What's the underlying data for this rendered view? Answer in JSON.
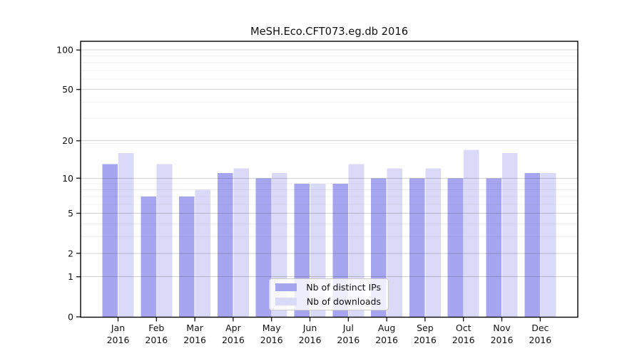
{
  "chart_data": {
    "type": "bar",
    "title": "MeSH.Eco.CFT073.eg.db 2016",
    "categories": [
      "Jan",
      "Feb",
      "Mar",
      "Apr",
      "May",
      "Jun",
      "Jul",
      "Aug",
      "Sep",
      "Oct",
      "Nov",
      "Dec"
    ],
    "x_year_label": "2016",
    "series": [
      {
        "name": "Nb of distinct IPs",
        "color": "#a6a6f0",
        "values": [
          13,
          7,
          7,
          11,
          10,
          9,
          9,
          10,
          10,
          10,
          10,
          11
        ]
      },
      {
        "name": "Nb of downloads",
        "color": "#dadaf8",
        "values": [
          16,
          13,
          8,
          12,
          11,
          9,
          13,
          12,
          12,
          17,
          16,
          11
        ]
      }
    ],
    "y_scale": "log10(1+v), linear-looking 0 baseline",
    "y_major_ticks": [
      0,
      1,
      2,
      5,
      10,
      20,
      50,
      100
    ],
    "y_minor_gridlines": [
      3,
      4,
      6,
      7,
      8,
      9,
      19,
      30,
      40,
      60,
      70,
      80,
      90
    ],
    "ylim": [
      0,
      116
    ],
    "xlabel": "",
    "ylabel": "",
    "grid": "horizontal major+minor, drawn over bars",
    "legend_position": "inside bottom-center",
    "colors": {
      "major_grid": "rgba(0,0,0,0.18)",
      "minor_grid": "rgba(0,0,0,0.055)",
      "spine": "#000000",
      "legend_border": "#cccccc"
    }
  }
}
